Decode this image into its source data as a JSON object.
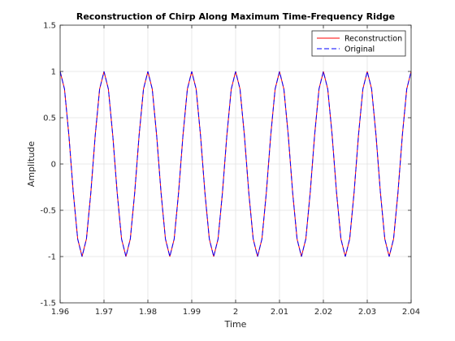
{
  "chart_data": {
    "type": "line",
    "title": "Reconstruction of Chirp Along Maximum Time-Frequency Ridge",
    "xlabel": "Time",
    "ylabel": "Amplitude",
    "xlim": [
      1.96,
      2.04
    ],
    "ylim": [
      -1.5,
      1.5
    ],
    "xticks": [
      "1.96",
      "1.97",
      "1.98",
      "1.99",
      "2",
      "2.01",
      "2.02",
      "2.03",
      "2.04"
    ],
    "yticks": [
      "-1.5",
      "-1",
      "-0.5",
      "0",
      "0.5",
      "1",
      "1.5"
    ],
    "grid": true,
    "legend_position": "top-right",
    "series": [
      {
        "name": "Reconstruction",
        "color": "#ff0000",
        "style": "solid",
        "signal": {
          "frequency_hz": 100,
          "amplitude": 1,
          "phase": "cosine",
          "sample_interval": 0.001
        }
      },
      {
        "name": "Original",
        "color": "#0000ff",
        "style": "dashed",
        "signal": {
          "frequency_hz": 100,
          "amplitude": 1,
          "phase": "cosine",
          "sample_interval": 0.001
        }
      }
    ]
  }
}
